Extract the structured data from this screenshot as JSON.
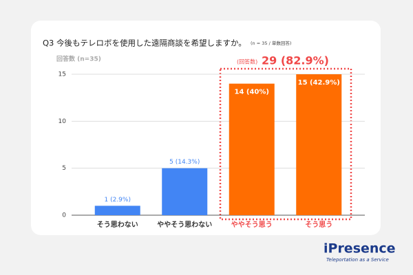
{
  "chart_data": {
    "type": "bar",
    "title": "Q3 今後もテレロボを使用した遠隔商談を希望しますか。",
    "subtitle": "(n = 35 / 単数回答)",
    "y_label": "回答数 (n=35)",
    "categories": [
      "そう思わない",
      "ややそう思わない",
      "ややそう思う",
      "そう思う"
    ],
    "values": [
      1,
      5,
      14,
      15
    ],
    "value_labels": [
      "1 (2.9%)",
      "5 (14.3%)",
      "14 (40%)",
      "15 (42.9%)"
    ],
    "colors": [
      "#4285f4",
      "#4285f4",
      "#ff6d01",
      "#ff6d01"
    ],
    "category_label_colors": [
      "#333333",
      "#333333",
      "#f04848",
      "#f04848"
    ],
    "ylim": [
      0,
      15
    ],
    "yticks": [
      0,
      5,
      10,
      15
    ],
    "grid": true,
    "annotation": {
      "prefix": "(回答数)",
      "text": "29 (82.9%)"
    }
  },
  "logo": {
    "name": "iPresence",
    "tagline": "Teleportation as a Service"
  }
}
